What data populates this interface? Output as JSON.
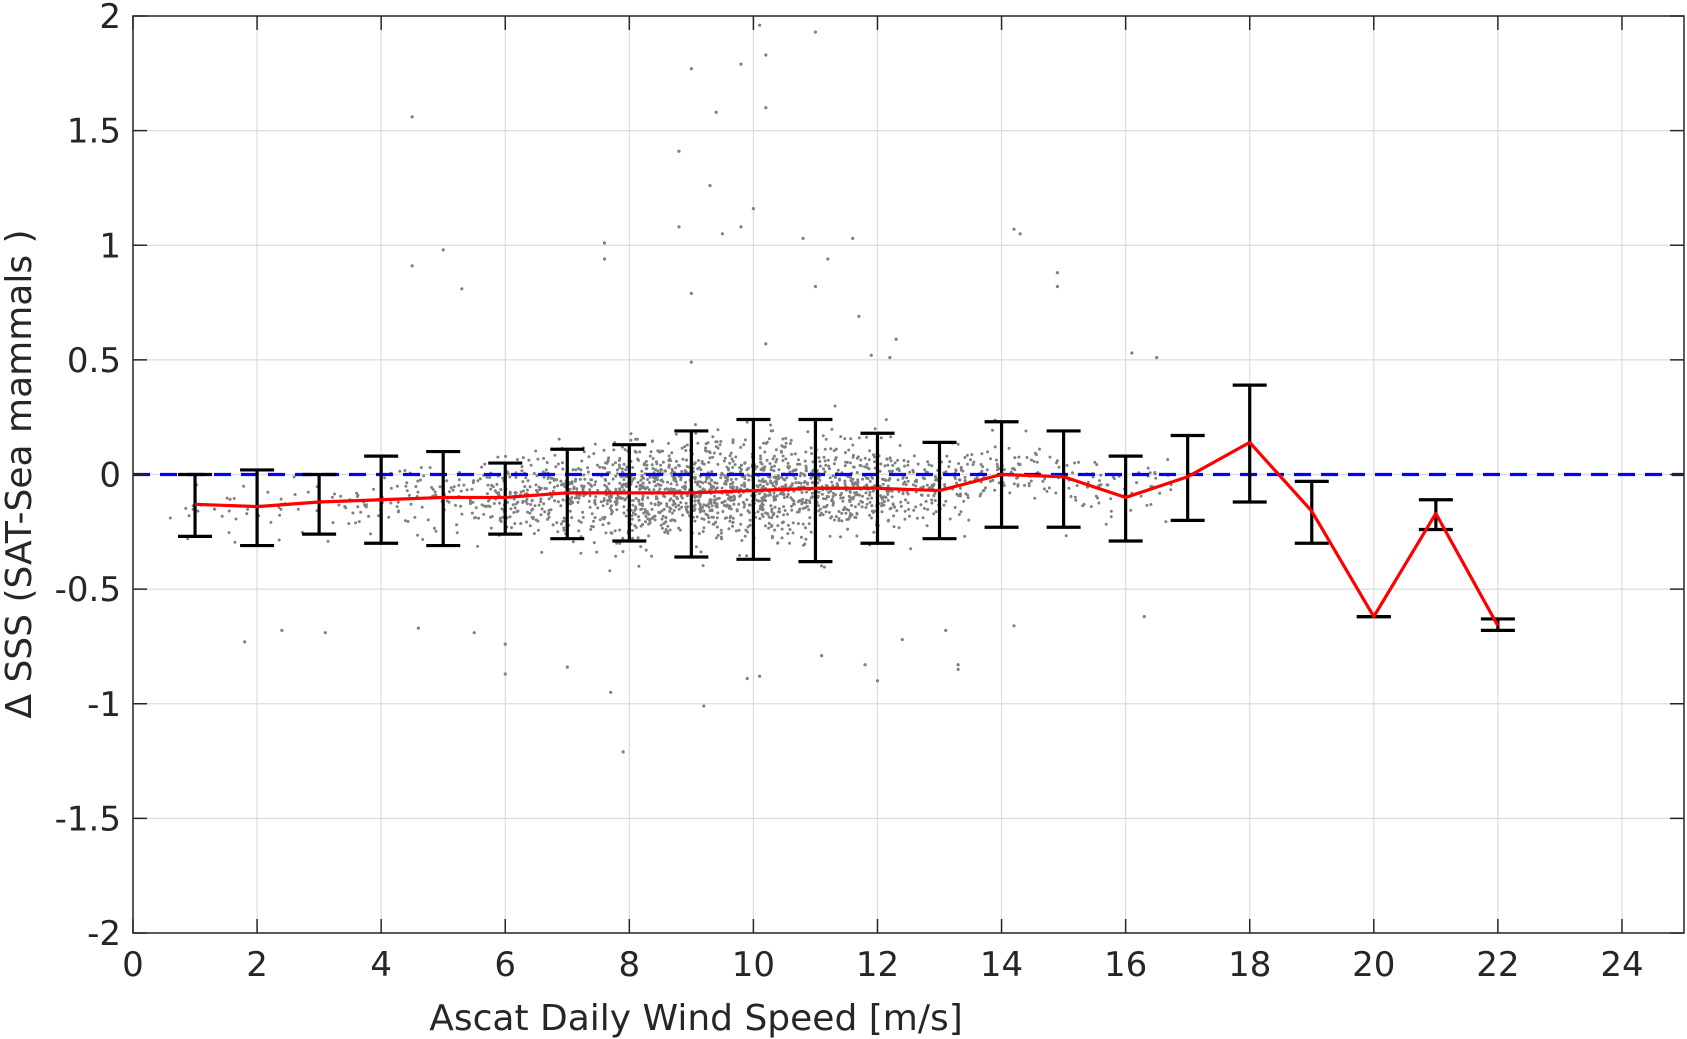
{
  "chart_data": {
    "type": "scatter",
    "xlabel": "Ascat Daily Wind Speed [m/s]",
    "ylabel": "Δ SSS (SAT-Sea mammals )",
    "xlim": [
      0,
      25
    ],
    "ylim": [
      -2,
      2
    ],
    "xticks": [
      0,
      2,
      4,
      6,
      8,
      10,
      12,
      14,
      16,
      18,
      20,
      22,
      24
    ],
    "yticks": [
      -2,
      -1.5,
      -1,
      -0.5,
      0,
      0.5,
      1,
      1.5,
      2
    ],
    "grid": true,
    "reference_line": {
      "y": 0,
      "style": "dashed",
      "color": "#0000ff"
    },
    "scatter_color": "#808080",
    "bin_means": {
      "color": "#ff0000",
      "x": [
        1,
        2,
        3,
        4,
        5,
        6,
        7,
        8,
        9,
        10,
        11,
        12,
        13,
        14,
        15,
        16,
        17,
        18,
        19,
        20,
        21,
        22
      ],
      "y": [
        -0.13,
        -0.14,
        -0.12,
        -0.11,
        -0.1,
        -0.1,
        -0.08,
        -0.08,
        -0.08,
        -0.07,
        -0.06,
        -0.06,
        -0.07,
        0.0,
        -0.01,
        -0.1,
        -0.01,
        0.14,
        -0.16,
        -0.62,
        -0.17,
        -0.66
      ]
    },
    "error_bars": {
      "color": "#000000",
      "x": [
        1,
        2,
        3,
        4,
        5,
        6,
        7,
        8,
        9,
        10,
        11,
        12,
        13,
        14,
        15,
        16,
        17,
        18,
        19,
        20,
        21,
        22
      ],
      "lower": [
        -0.27,
        -0.31,
        -0.26,
        -0.3,
        -0.31,
        -0.26,
        -0.28,
        -0.29,
        -0.36,
        -0.37,
        -0.38,
        -0.3,
        -0.28,
        -0.23,
        -0.23,
        -0.29,
        -0.2,
        -0.12,
        -0.3,
        -0.62,
        -0.24,
        -0.68
      ],
      "upper": [
        0.0,
        0.02,
        0.0,
        0.08,
        0.1,
        0.05,
        0.11,
        0.13,
        0.19,
        0.24,
        0.24,
        0.18,
        0.14,
        0.23,
        0.19,
        0.08,
        0.17,
        0.39,
        -0.03,
        -0.62,
        -0.11,
        -0.63
      ]
    },
    "outlier_points": [
      [
        4.5,
        1.56
      ],
      [
        4.5,
        0.91
      ],
      [
        5.0,
        0.98
      ],
      [
        5.3,
        0.81
      ],
      [
        9.0,
        1.77
      ],
      [
        8.8,
        1.41
      ],
      [
        9.4,
        1.58
      ],
      [
        9.3,
        1.26
      ],
      [
        9.8,
        1.79
      ],
      [
        10.1,
        1.96
      ],
      [
        10.2,
        1.83
      ],
      [
        10.2,
        1.6
      ],
      [
        11.0,
        1.93
      ],
      [
        10.0,
        1.16
      ],
      [
        9.8,
        1.08
      ],
      [
        9.5,
        1.05
      ],
      [
        8.8,
        1.08
      ],
      [
        9.0,
        0.79
      ],
      [
        7.6,
        1.01
      ],
      [
        7.6,
        0.94
      ],
      [
        10.8,
        1.03
      ],
      [
        11.0,
        0.82
      ],
      [
        11.2,
        0.94
      ],
      [
        11.6,
        1.03
      ],
      [
        11.7,
        0.69
      ],
      [
        11.9,
        0.52
      ],
      [
        12.2,
        0.51
      ],
      [
        12.3,
        0.59
      ],
      [
        14.2,
        1.07
      ],
      [
        14.3,
        1.05
      ],
      [
        14.9,
        0.88
      ],
      [
        14.9,
        0.82
      ],
      [
        16.1,
        0.53
      ],
      [
        16.5,
        0.51
      ],
      [
        10.2,
        0.57
      ],
      [
        9.0,
        0.49
      ],
      [
        7.7,
        -0.95
      ],
      [
        7.9,
        -1.21
      ],
      [
        9.2,
        -1.01
      ],
      [
        9.9,
        -0.89
      ],
      [
        10.1,
        -0.88
      ],
      [
        11.1,
        -0.79
      ],
      [
        11.8,
        -0.83
      ],
      [
        12.0,
        -0.9
      ],
      [
        12.4,
        -0.72
      ],
      [
        13.1,
        -0.68
      ],
      [
        13.3,
        -0.85
      ],
      [
        13.3,
        -0.83
      ],
      [
        14.2,
        -0.66
      ],
      [
        16.3,
        -0.62
      ],
      [
        5.5,
        -0.69
      ],
      [
        3.1,
        -0.69
      ],
      [
        2.4,
        -0.68
      ],
      [
        1.8,
        -0.73
      ],
      [
        6.0,
        -0.87
      ],
      [
        6.0,
        -0.74
      ],
      [
        7.0,
        -0.84
      ],
      [
        4.6,
        -0.67
      ]
    ]
  }
}
